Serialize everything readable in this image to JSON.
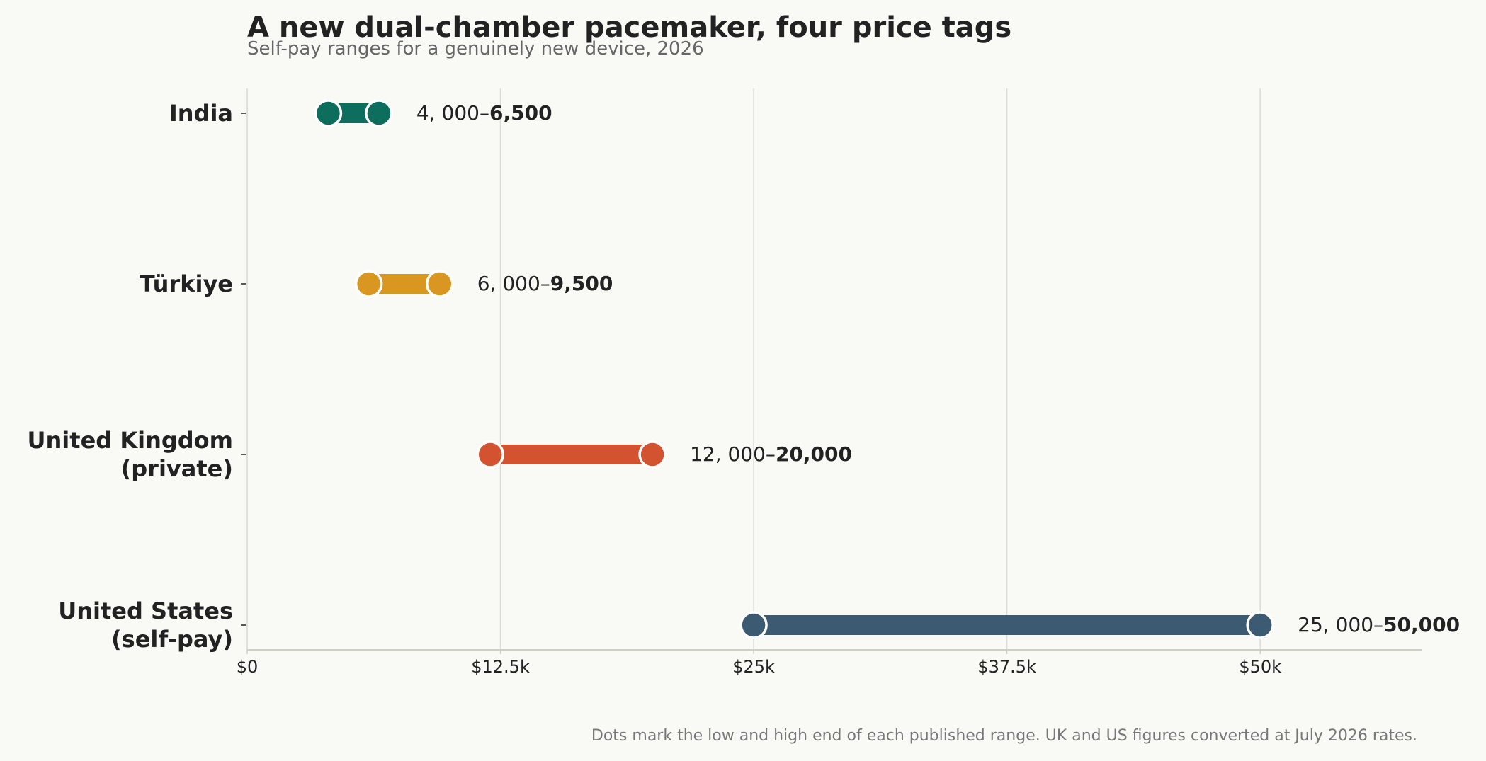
{
  "chart_data": {
    "type": "range",
    "title": "A new dual-chamber pacemaker, four price tags",
    "subtitle": "Self-pay ranges for a genuinely new device, 2026",
    "footnote": "Dots mark the low and high end of each published range. UK and US figures converted at July 2026 rates.",
    "xlabel": "",
    "ylabel": "",
    "xlim": [
      0,
      58000
    ],
    "xticks": [
      0,
      12500,
      25000,
      37500,
      50000
    ],
    "xtick_labels": [
      "$0",
      "$12.5k",
      "$25k",
      "$37.5k",
      "$50k"
    ],
    "grid": "vertical",
    "legend": "none",
    "series": [
      {
        "category_lines": [
          "India"
        ],
        "low": 4000,
        "high": 6500,
        "label_prefix": "4, 000–",
        "label_bold": "6,500",
        "color": "#0e6e5e"
      },
      {
        "category_lines": [
          "Türkiye"
        ],
        "low": 6000,
        "high": 9500,
        "label_prefix": "6, 000–",
        "label_bold": "9,500",
        "color": "#d99620"
      },
      {
        "category_lines": [
          "United Kingdom",
          "(private)"
        ],
        "low": 12000,
        "high": 20000,
        "label_prefix": "12, 000–",
        "label_bold": "20,000",
        "color": "#d35230"
      },
      {
        "category_lines": [
          "United States",
          "(self-pay)"
        ],
        "low": 25000,
        "high": 50000,
        "label_prefix": "25, 000–",
        "label_bold": "50,000",
        "color": "#3d5a73"
      }
    ],
    "colors": {
      "background": "#f9f9f5",
      "text": "#222222",
      "subtitle": "#666666",
      "footnote": "#777777",
      "grid": "#dcdcd6",
      "axis": "#cfcfc8"
    }
  }
}
